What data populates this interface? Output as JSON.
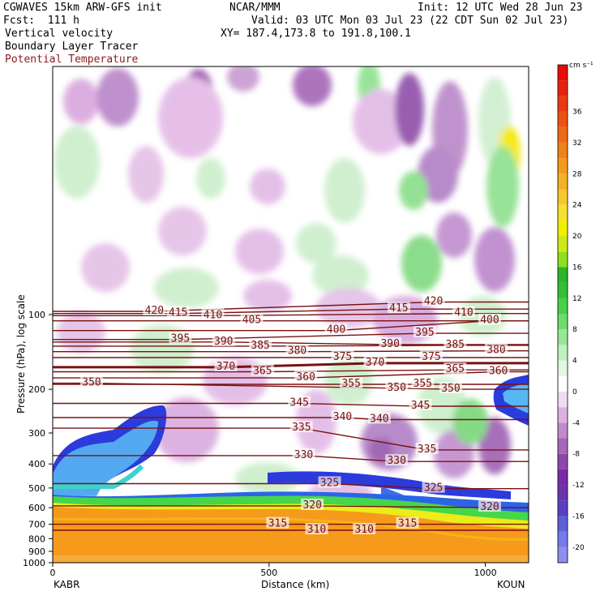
{
  "header": {
    "model": "CGWAVES 15km ARW-GFS init",
    "org": "NCAR/MMM",
    "init": "Init: 12 UTC Wed 28 Jun 23",
    "fcst": "Fcst:  111 h",
    "valid": "Valid: 03 UTC Mon 03 Jul 23 (22 CDT Sun 02 Jul 23)",
    "field1": "Vertical velocity",
    "field2": "Boundary Layer Tracer",
    "field3": "Potential Temperature",
    "xy": "XY= 187.4,173.8 to 191.8,100.1"
  },
  "colors": {
    "theta": "#7a1010",
    "text": "#000000"
  },
  "chart_data": {
    "type": "heatmap",
    "xlabel": "Distance (km)",
    "ylabel": "Pressure (hPa), log scale",
    "xlim": [
      0,
      1100
    ],
    "ylim": [
      1000,
      10
    ],
    "y_scale": "log",
    "x_ticks": [
      {
        "v": 0,
        "label": "0"
      },
      {
        "v": 500,
        "label": "500"
      },
      {
        "v": 1000,
        "label": "1000"
      }
    ],
    "y_ticks": [
      {
        "v": 100,
        "label": "100"
      },
      {
        "v": 200,
        "label": "200"
      },
      {
        "v": 300,
        "label": "300"
      },
      {
        "v": 400,
        "label": "400"
      },
      {
        "v": 500,
        "label": "500"
      },
      {
        "v": 600,
        "label": "600"
      },
      {
        "v": 700,
        "label": "700"
      },
      {
        "v": 800,
        "label": "800"
      },
      {
        "v": 900,
        "label": "900"
      },
      {
        "v": 1000,
        "label": "1000"
      }
    ],
    "endpoints": {
      "left": "KABR",
      "right": "KOUN"
    },
    "colorbar": {
      "units": "cm s⁻¹",
      "min": -22,
      "max": 42,
      "step": 2,
      "labels": [
        36,
        32,
        28,
        24,
        20,
        16,
        12,
        8,
        4,
        0,
        -4,
        -8,
        -12,
        -16,
        -20
      ]
    },
    "isentropes": [
      {
        "label": "420",
        "x": 235,
        "p": 97
      },
      {
        "label": "415",
        "x": 290,
        "p": 99
      },
      {
        "label": "410",
        "x": 370,
        "p": 101
      },
      {
        "label": "405",
        "x": 460,
        "p": 106
      },
      {
        "label": "400",
        "x": 655,
        "p": 116
      },
      {
        "label": "395",
        "x": 295,
        "p": 126
      },
      {
        "label": "390",
        "x": 395,
        "p": 129
      },
      {
        "label": "385",
        "x": 480,
        "p": 134
      },
      {
        "label": "380",
        "x": 565,
        "p": 141
      },
      {
        "label": "375",
        "x": 670,
        "p": 149
      },
      {
        "label": "370",
        "x": 745,
        "p": 157
      },
      {
        "label": "370",
        "x": 400,
        "p": 163
      },
      {
        "label": "365",
        "x": 485,
        "p": 170
      },
      {
        "label": "360",
        "x": 585,
        "p": 180
      },
      {
        "label": "355",
        "x": 690,
        "p": 191
      },
      {
        "label": "350",
        "x": 90,
        "p": 189
      },
      {
        "label": "350",
        "x": 795,
        "p": 198
      },
      {
        "label": "345",
        "x": 570,
        "p": 228
      },
      {
        "label": "340",
        "x": 670,
        "p": 260
      },
      {
        "label": "335",
        "x": 575,
        "p": 287
      },
      {
        "label": "330",
        "x": 580,
        "p": 370
      },
      {
        "label": "325",
        "x": 640,
        "p": 480
      },
      {
        "label": "320",
        "x": 600,
        "p": 590
      },
      {
        "label": "315",
        "x": 520,
        "p": 700
      },
      {
        "label": "310",
        "x": 610,
        "p": 740
      },
      {
        "label": "420",
        "x": 880,
        "p": 89
      },
      {
        "label": "415",
        "x": 800,
        "p": 95
      },
      {
        "label": "410",
        "x": 950,
        "p": 99
      },
      {
        "label": "400",
        "x": 1010,
        "p": 106
      },
      {
        "label": "395",
        "x": 860,
        "p": 119
      },
      {
        "label": "390",
        "x": 780,
        "p": 132
      },
      {
        "label": "385",
        "x": 930,
        "p": 133
      },
      {
        "label": "380",
        "x": 1025,
        "p": 140
      },
      {
        "label": "375",
        "x": 875,
        "p": 149
      },
      {
        "label": "365",
        "x": 930,
        "p": 167
      },
      {
        "label": "360",
        "x": 1030,
        "p": 170
      },
      {
        "label": "355",
        "x": 855,
        "p": 191
      },
      {
        "label": "350",
        "x": 920,
        "p": 200
      },
      {
        "label": "345",
        "x": 850,
        "p": 234
      },
      {
        "label": "340",
        "x": 755,
        "p": 265
      },
      {
        "label": "335",
        "x": 865,
        "p": 351
      },
      {
        "label": "330",
        "x": 795,
        "p": 391
      },
      {
        "label": "325",
        "x": 880,
        "p": 503
      },
      {
        "label": "320",
        "x": 1010,
        "p": 600
      },
      {
        "label": "315",
        "x": 820,
        "p": 700
      },
      {
        "label": "310",
        "x": 720,
        "p": 740
      }
    ]
  }
}
